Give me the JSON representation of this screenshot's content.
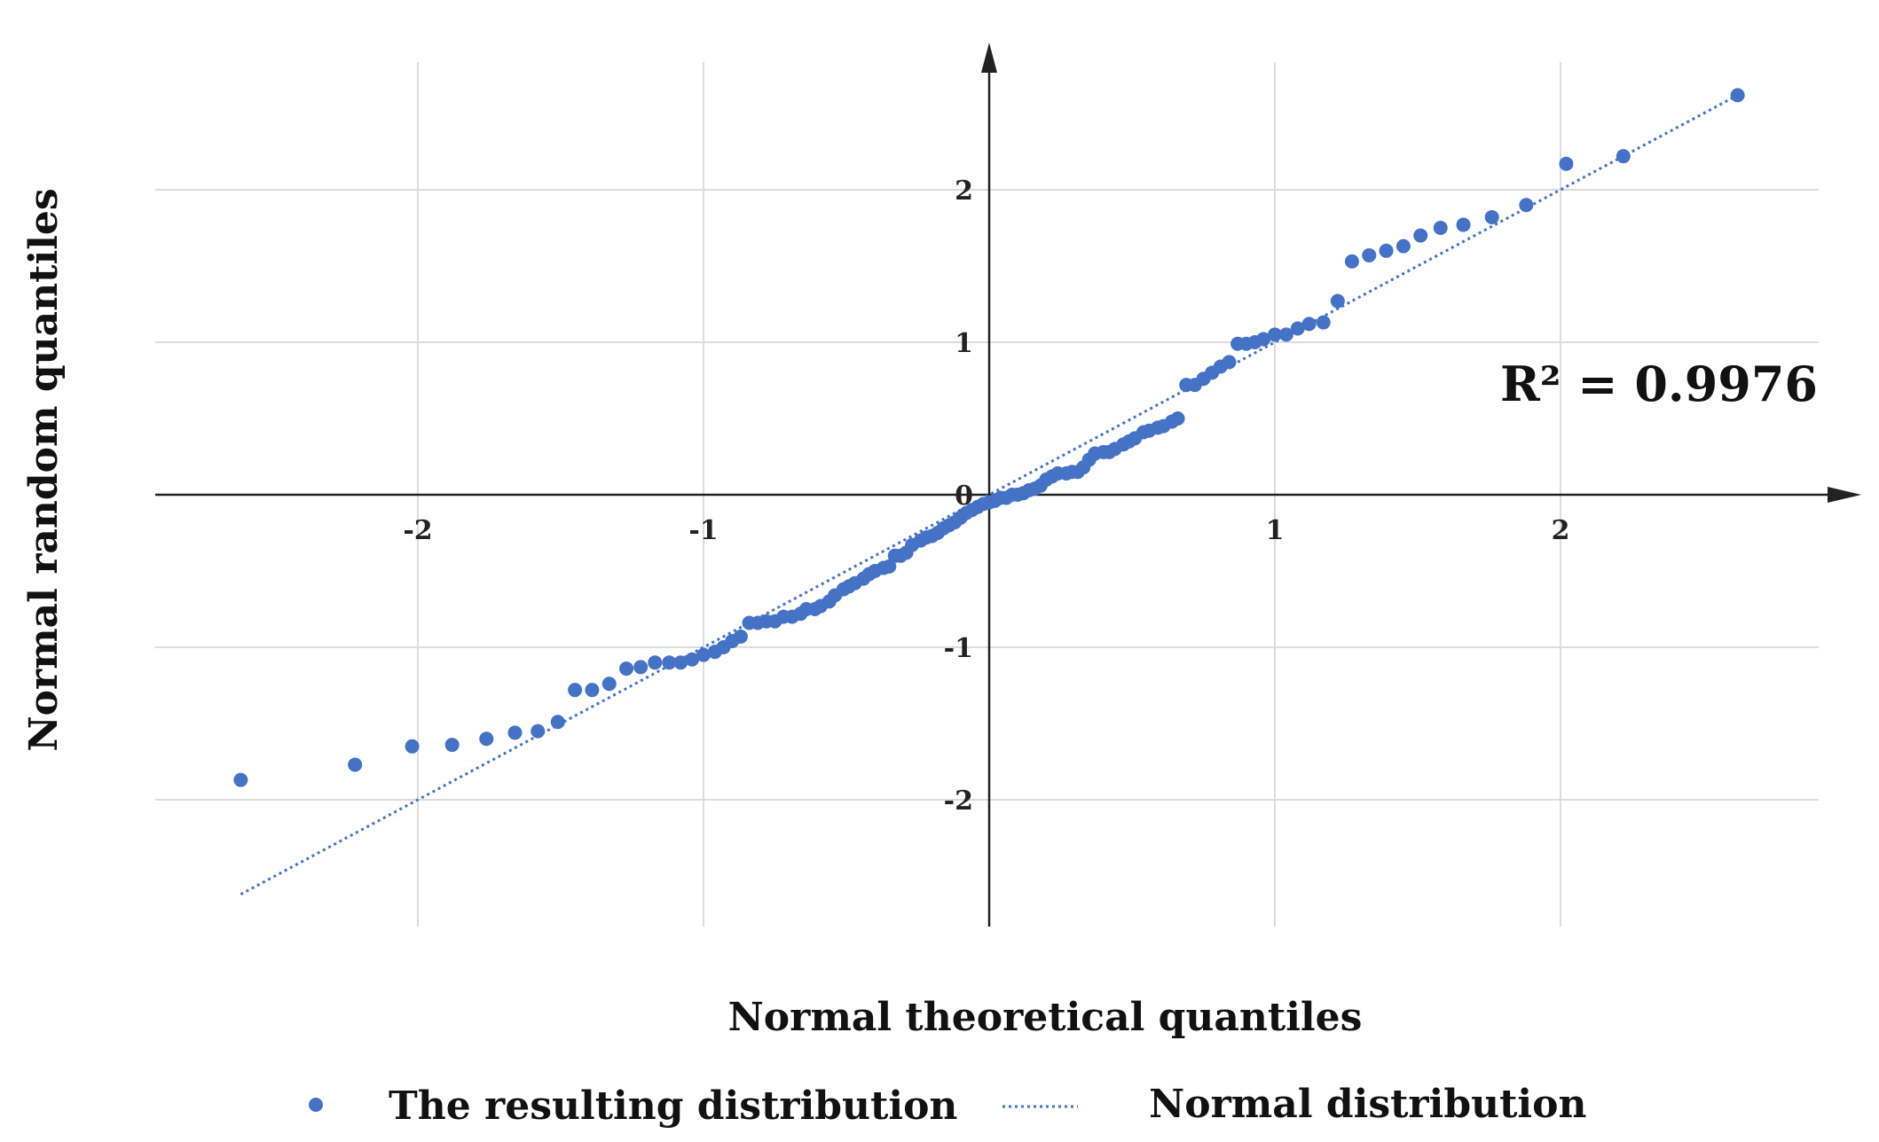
{
  "chart_data": {
    "type": "scatter",
    "title": "",
    "xlabel": "Normal theoretical quantiles",
    "ylabel": "Normal random quantiles",
    "xlim": [
      -2.95,
      2.9
    ],
    "ylim": [
      -2.8,
      2.85
    ],
    "xticks": [
      -2,
      -1,
      0,
      1,
      2
    ],
    "yticks": [
      -2,
      -1,
      0,
      1,
      2
    ],
    "grid": true,
    "legend_position": "bottom",
    "annotation": "R² = 0.9976",
    "series": [
      {
        "name": "The resulting distribution",
        "kind": "scatter",
        "color": "#4472C4",
        "points": [
          [
            -2.62,
            -1.87
          ],
          [
            -2.22,
            -1.77
          ],
          [
            -2.02,
            -1.65
          ],
          [
            -1.88,
            -1.64
          ],
          [
            -1.76,
            -1.6
          ],
          [
            -1.66,
            -1.56
          ],
          [
            -1.58,
            -1.55
          ],
          [
            -1.51,
            -1.49
          ],
          [
            -1.45,
            -1.28
          ],
          [
            -1.39,
            -1.28
          ],
          [
            -1.33,
            -1.24
          ],
          [
            -1.27,
            -1.14
          ],
          [
            -1.22,
            -1.13
          ],
          [
            -1.17,
            -1.1
          ],
          [
            -1.12,
            -1.1
          ],
          [
            -1.08,
            -1.1
          ],
          [
            -1.04,
            -1.08
          ],
          [
            -1.0,
            -1.05
          ],
          [
            -0.96,
            -1.03
          ],
          [
            -0.93,
            -1.0
          ],
          [
            -0.9,
            -0.96
          ],
          [
            -0.87,
            -0.93
          ],
          [
            -0.84,
            -0.84
          ],
          [
            -0.81,
            -0.84
          ],
          [
            -0.78,
            -0.83
          ],
          [
            -0.75,
            -0.83
          ],
          [
            -0.72,
            -0.8
          ],
          [
            -0.69,
            -0.8
          ],
          [
            -0.66,
            -0.78
          ],
          [
            -0.64,
            -0.75
          ],
          [
            -0.61,
            -0.75
          ],
          [
            -0.59,
            -0.73
          ],
          [
            -0.56,
            -0.7
          ],
          [
            -0.54,
            -0.66
          ],
          [
            -0.51,
            -0.62
          ],
          [
            -0.49,
            -0.6
          ],
          [
            -0.47,
            -0.58
          ],
          [
            -0.44,
            -0.55
          ],
          [
            -0.42,
            -0.52
          ],
          [
            -0.4,
            -0.5
          ],
          [
            -0.37,
            -0.48
          ],
          [
            -0.35,
            -0.47
          ],
          [
            -0.33,
            -0.4
          ],
          [
            -0.31,
            -0.4
          ],
          [
            -0.29,
            -0.38
          ],
          [
            -0.27,
            -0.33
          ],
          [
            -0.24,
            -0.3
          ],
          [
            -0.22,
            -0.28
          ],
          [
            -0.2,
            -0.27
          ],
          [
            -0.18,
            -0.25
          ],
          [
            -0.16,
            -0.22
          ],
          [
            -0.14,
            -0.2
          ],
          [
            -0.12,
            -0.18
          ],
          [
            -0.1,
            -0.15
          ],
          [
            -0.08,
            -0.12
          ],
          [
            -0.06,
            -0.1
          ],
          [
            -0.04,
            -0.08
          ],
          [
            -0.02,
            -0.06
          ],
          [
            0.0,
            -0.05
          ],
          [
            0.02,
            -0.04
          ],
          [
            0.04,
            -0.02
          ],
          [
            0.06,
            -0.02
          ],
          [
            0.08,
            0.0
          ],
          [
            0.1,
            0.0
          ],
          [
            0.12,
            0.01
          ],
          [
            0.14,
            0.03
          ],
          [
            0.16,
            0.04
          ],
          [
            0.18,
            0.06
          ],
          [
            0.2,
            0.1
          ],
          [
            0.22,
            0.12
          ],
          [
            0.24,
            0.14
          ],
          [
            0.27,
            0.14
          ],
          [
            0.29,
            0.15
          ],
          [
            0.31,
            0.15
          ],
          [
            0.33,
            0.18
          ],
          [
            0.35,
            0.23
          ],
          [
            0.37,
            0.27
          ],
          [
            0.4,
            0.28
          ],
          [
            0.42,
            0.28
          ],
          [
            0.44,
            0.3
          ],
          [
            0.47,
            0.33
          ],
          [
            0.49,
            0.35
          ],
          [
            0.51,
            0.37
          ],
          [
            0.54,
            0.41
          ],
          [
            0.56,
            0.42
          ],
          [
            0.59,
            0.44
          ],
          [
            0.61,
            0.45
          ],
          [
            0.64,
            0.48
          ],
          [
            0.66,
            0.5
          ],
          [
            0.69,
            0.72
          ],
          [
            0.72,
            0.72
          ],
          [
            0.75,
            0.76
          ],
          [
            0.78,
            0.8
          ],
          [
            0.81,
            0.84
          ],
          [
            0.84,
            0.87
          ],
          [
            0.87,
            0.99
          ],
          [
            0.9,
            0.99
          ],
          [
            0.93,
            1.0
          ],
          [
            0.96,
            1.02
          ],
          [
            1.0,
            1.05
          ],
          [
            1.04,
            1.05
          ],
          [
            1.08,
            1.09
          ],
          [
            1.12,
            1.12
          ],
          [
            1.17,
            1.13
          ],
          [
            1.22,
            1.27
          ],
          [
            1.27,
            1.53
          ],
          [
            1.33,
            1.57
          ],
          [
            1.39,
            1.6
          ],
          [
            1.45,
            1.63
          ],
          [
            1.51,
            1.7
          ],
          [
            1.58,
            1.75
          ],
          [
            1.66,
            1.77
          ],
          [
            1.76,
            1.82
          ],
          [
            1.88,
            1.9
          ],
          [
            2.02,
            2.17
          ],
          [
            2.22,
            2.22
          ],
          [
            2.62,
            2.62
          ]
        ]
      },
      {
        "name": "Normal distribution",
        "kind": "line",
        "style": "dotted",
        "color": "#4472C4",
        "points": [
          [
            -2.62,
            -2.62
          ],
          [
            2.62,
            2.62
          ]
        ]
      }
    ]
  }
}
